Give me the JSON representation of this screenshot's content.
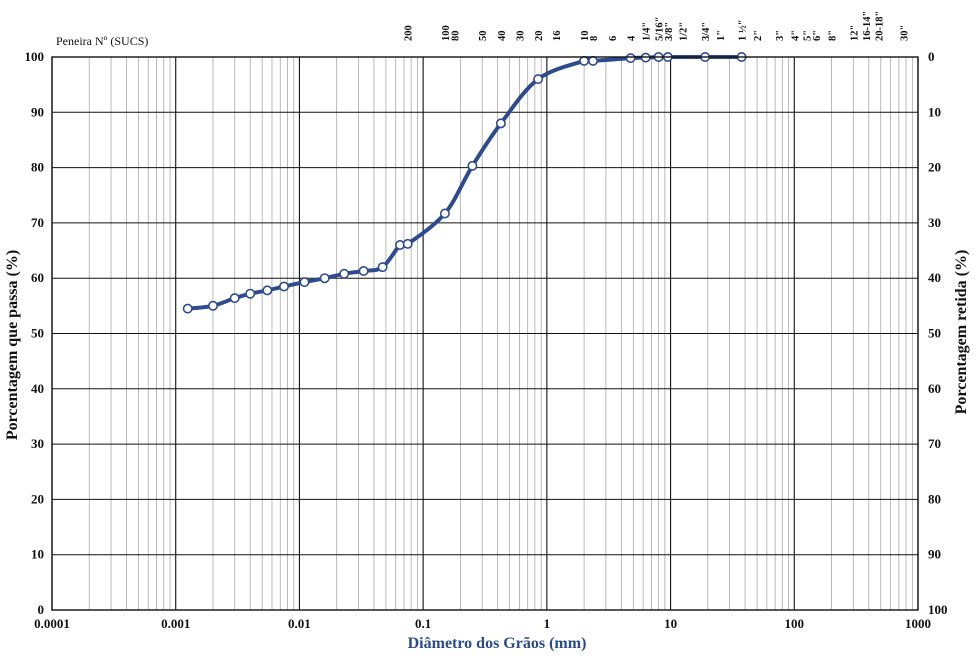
{
  "chart_data": {
    "type": "line",
    "title": "",
    "xlabel": "Diâmetro dos Grãos (mm)",
    "ylabel": "Porcentagem que passa (%)",
    "ylabel_right": "Porcentagem retida (%)",
    "x_scale": "log",
    "xlim": [
      0.0001,
      1000
    ],
    "ylim": [
      0,
      100
    ],
    "x_tick_labels": [
      "0.0001",
      "0.001",
      "0.01",
      "0.1",
      "1",
      "10",
      "100",
      "1000"
    ],
    "x_tick_values": [
      0.0001,
      0.001,
      0.01,
      0.1,
      1,
      10,
      100,
      1000
    ],
    "y_tick_labels": [
      "0",
      "10",
      "20",
      "30",
      "40",
      "50",
      "60",
      "70",
      "80",
      "90",
      "100"
    ],
    "y_tick_values": [
      0,
      10,
      20,
      30,
      40,
      50,
      60,
      70,
      80,
      90,
      100
    ],
    "y_right_tick_labels": [
      "100",
      "90",
      "80",
      "70",
      "60",
      "50",
      "40",
      "30",
      "20",
      "10",
      "0"
    ],
    "grid": true,
    "sieve_header": "Peneira Nº (SUCS)",
    "sieves": [
      {
        "label": "200",
        "size": 0.075
      },
      {
        "label": "100",
        "size": 0.15
      },
      {
        "label": "80",
        "size": 0.18
      },
      {
        "label": "50",
        "size": 0.3
      },
      {
        "label": "40",
        "size": 0.425
      },
      {
        "label": "30",
        "size": 0.6
      },
      {
        "label": "20",
        "size": 0.85
      },
      {
        "label": "16",
        "size": 1.18
      },
      {
        "label": "10",
        "size": 2.0
      },
      {
        "label": "8",
        "size": 2.36
      },
      {
        "label": "6",
        "size": 3.35
      },
      {
        "label": "4",
        "size": 4.75
      },
      {
        "label": "1/4\"",
        "size": 6.3
      },
      {
        "label": "5/16\"",
        "size": 8.0
      },
      {
        "label": "3/8\"",
        "size": 9.5
      },
      {
        "label": "1/2\"",
        "size": 12.5
      },
      {
        "label": "3/4\"",
        "size": 19.0
      },
      {
        "label": "1\"",
        "size": 25.0
      },
      {
        "label": "1 ½\"",
        "size": 37.5
      },
      {
        "label": "2\"",
        "size": 50.0
      },
      {
        "label": "3\"",
        "size": 75.0
      },
      {
        "label": "4\"",
        "size": 100.0
      },
      {
        "label": "5\"",
        "size": 125.0
      },
      {
        "label": "6\"",
        "size": 150.0
      },
      {
        "label": "8\"",
        "size": 200.0
      },
      {
        "label": "12\"",
        "size": 300.0
      },
      {
        "label": "16-14\"",
        "size": 380.0
      },
      {
        "label": "20-18\"",
        "size": 480.0
      },
      {
        "label": "30\"",
        "size": 760.0
      }
    ],
    "series": [
      {
        "color": "#2f4b8f",
        "x": [
          0.00125,
          0.002,
          0.003,
          0.004,
          0.0055,
          0.0075,
          0.011,
          0.016,
          0.023,
          0.033,
          0.047,
          0.065,
          0.075,
          0.15,
          0.25,
          0.425,
          0.85,
          2.0,
          2.36,
          4.75,
          6.3,
          8.0,
          9.5,
          19.0,
          37.5
        ],
        "y": [
          54.5,
          55.0,
          56.4,
          57.2,
          57.8,
          58.5,
          59.3,
          60.0,
          60.8,
          61.3,
          62.0,
          66.0,
          66.2,
          71.7,
          80.3,
          88.0,
          96.0,
          99.3,
          99.3,
          99.8,
          99.9,
          100,
          100,
          100,
          100
        ]
      }
    ]
  }
}
